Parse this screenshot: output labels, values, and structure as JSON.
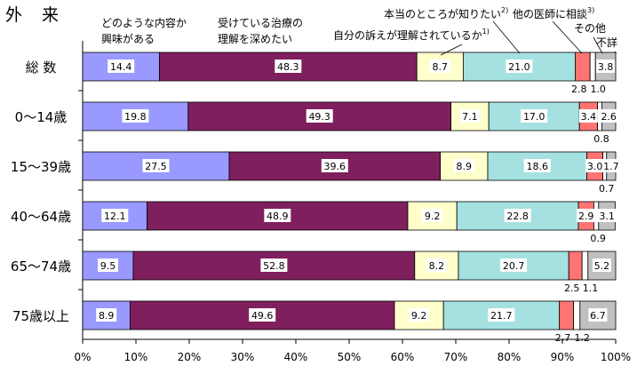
{
  "chart_data": {
    "type": "bar",
    "orientation": "horizontal",
    "stacked": true,
    "title": "外 来",
    "xlim": [
      0,
      100
    ],
    "xticks": [
      "0%",
      "10%",
      "20%",
      "30%",
      "40%",
      "50%",
      "60%",
      "70%",
      "80%",
      "90%",
      "100%"
    ],
    "categories": [
      "総 数",
      "0〜14歳",
      "15〜39歳",
      "40〜64歳",
      "65〜74歳",
      "75歳以上"
    ],
    "series": [
      {
        "name": "どのような内容か興味がある",
        "color": "#9999ff",
        "values": [
          14.4,
          19.8,
          27.5,
          12.1,
          9.5,
          8.9
        ]
      },
      {
        "name": "受けている治療の理解を深めたい",
        "color": "#7f1f5e",
        "values": [
          48.3,
          49.3,
          39.6,
          48.9,
          52.8,
          49.6
        ]
      },
      {
        "name": "自分の訴えが理解されているか",
        "sup": "1)",
        "color": "#ffffcc",
        "values": [
          8.7,
          7.1,
          8.9,
          9.2,
          8.2,
          9.2
        ]
      },
      {
        "name": "本当のところが知りたい",
        "sup": "2)",
        "color": "#a6e1e1",
        "values": [
          21.0,
          17.0,
          18.6,
          22.8,
          20.7,
          21.7
        ]
      },
      {
        "name": "他の医師に相談",
        "sup": "3)",
        "color": "#ff7373",
        "values": [
          2.8,
          3.4,
          3.0,
          2.9,
          2.5,
          2.7
        ]
      },
      {
        "name": "その他",
        "color": "#ffffff",
        "values": [
          1.0,
          0.8,
          0.7,
          0.9,
          1.1,
          1.2
        ]
      },
      {
        "name": "不詳",
        "color": "#c0c0c0",
        "values": [
          3.8,
          2.6,
          1.7,
          3.1,
          5.2,
          6.7
        ]
      }
    ],
    "legend": [
      {
        "lines": [
          "どのような内容か",
          "興味がある"
        ],
        "sup": ""
      },
      {
        "lines": [
          "受けている治療の",
          "理解を深めたい"
        ],
        "sup": ""
      },
      {
        "lines": [
          "自分の訴えが理解されているか"
        ],
        "sup": "1)"
      },
      {
        "lines": [
          "本当のところが知りたい"
        ],
        "sup": "2)"
      },
      {
        "lines": [
          "他の医師に相談"
        ],
        "sup": "3)"
      },
      {
        "lines": [
          "その他"
        ],
        "sup": ""
      },
      {
        "lines": [
          "不詳"
        ],
        "sup": ""
      }
    ]
  }
}
